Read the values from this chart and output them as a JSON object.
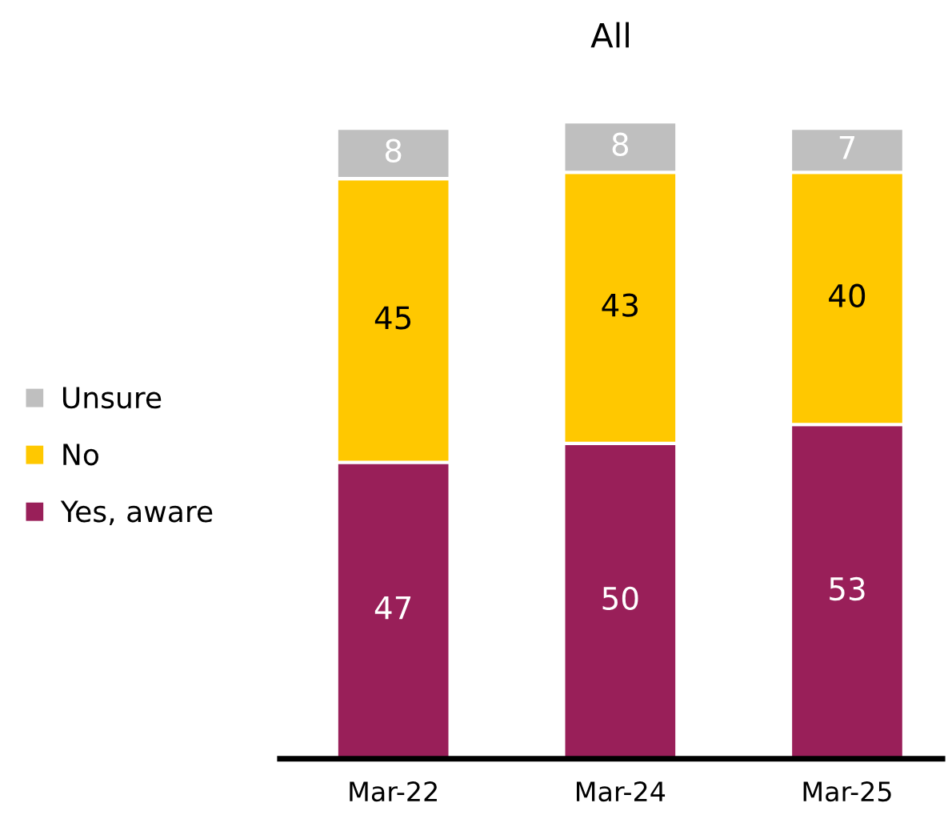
{
  "chart_data": {
    "type": "bar",
    "title": "All",
    "categories": [
      "Mar-22",
      "Mar-24",
      "Mar-25"
    ],
    "stacked": true,
    "data_labels": true,
    "legend": "left",
    "grid": false,
    "series": [
      {
        "name": "Yes, aware",
        "color": "#991f59",
        "values": [
          47,
          50,
          53
        ]
      },
      {
        "name": "No",
        "color": "#ffc800",
        "values": [
          45,
          43,
          40
        ]
      },
      {
        "name": "Unsure",
        "color": "#bfbfbf",
        "values": [
          8,
          8,
          7
        ]
      }
    ]
  }
}
